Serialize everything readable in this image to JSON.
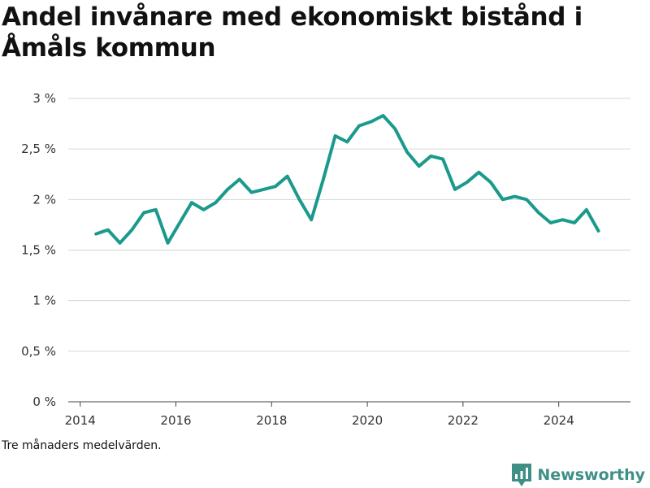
{
  "chart_data": {
    "type": "line",
    "title": "Andel invånare med ekonomiskt bistånd i Åmåls kommun",
    "footnote": "Tre månaders medelvärden.",
    "xlabel": "",
    "ylabel": "",
    "xlim": [
      2013.75,
      2025.5
    ],
    "ylim": [
      0,
      3
    ],
    "x_ticks": [
      2014,
      2016,
      2018,
      2020,
      2022,
      2024
    ],
    "y_ticks": [
      {
        "value": 0,
        "label": "0 %"
      },
      {
        "value": 0.5,
        "label": "0,5 %"
      },
      {
        "value": 1,
        "label": "1 %"
      },
      {
        "value": 1.5,
        "label": "1,5 %"
      },
      {
        "value": 2,
        "label": "2 %"
      },
      {
        "value": 2.5,
        "label": "2,5 %"
      },
      {
        "value": 3,
        "label": "3 %"
      }
    ],
    "grid": true,
    "series_color": "#1a9a8c",
    "series": [
      {
        "x": [
          2014.33,
          2014.58,
          2014.83,
          2015.08,
          2015.33,
          2015.58,
          2015.83,
          2016.08,
          2016.33,
          2016.58,
          2016.83,
          2017.08,
          2017.33,
          2017.58,
          2017.83,
          2018.08,
          2018.33,
          2018.58,
          2018.83,
          2019.08,
          2019.33,
          2019.58,
          2019.83,
          2020.08,
          2020.33,
          2020.58,
          2020.83,
          2021.08,
          2021.33,
          2021.58,
          2021.83,
          2022.08,
          2022.33,
          2022.58,
          2022.83,
          2023.08,
          2023.33,
          2023.58,
          2023.83,
          2024.08,
          2024.33,
          2024.58,
          2024.83
        ],
        "values": [
          1.66,
          1.7,
          1.57,
          1.7,
          1.87,
          1.9,
          1.57,
          1.77,
          1.97,
          1.9,
          1.97,
          2.1,
          2.2,
          2.07,
          2.1,
          2.13,
          2.23,
          2.0,
          1.8,
          2.2,
          2.63,
          2.57,
          2.73,
          2.77,
          2.83,
          2.7,
          2.47,
          2.33,
          2.43,
          2.4,
          2.1,
          2.17,
          2.27,
          2.17,
          2.0,
          2.03,
          2.0,
          1.87,
          1.77,
          1.8,
          1.77,
          1.9,
          1.69
        ]
      }
    ]
  },
  "brand": {
    "name": "Newsworthy",
    "icon": "newsworthy-logo-icon",
    "color": "#3f8f86"
  }
}
